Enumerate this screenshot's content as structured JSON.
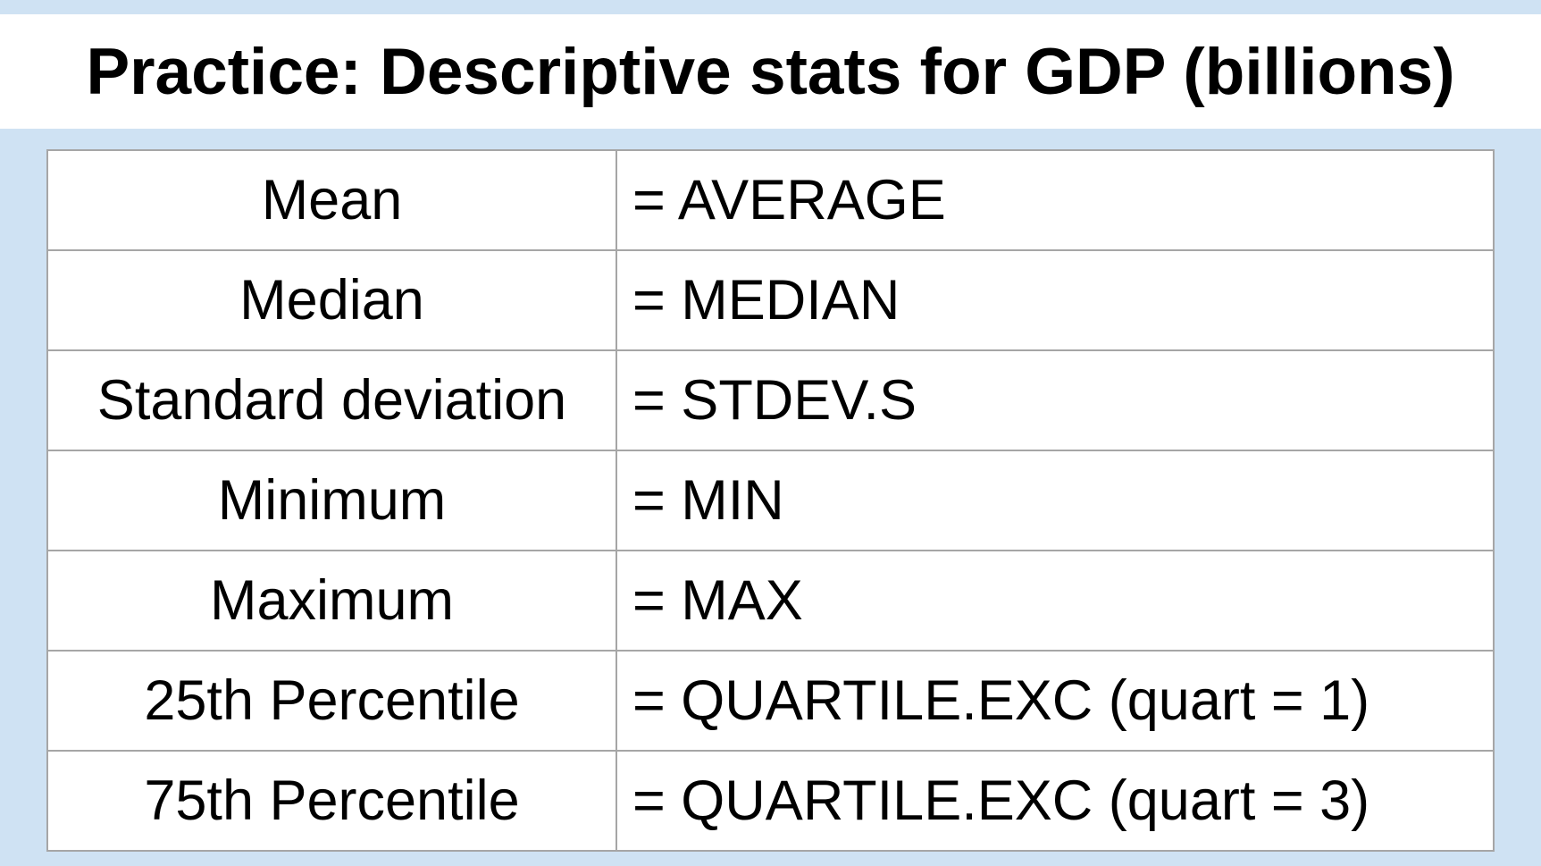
{
  "slide": {
    "title": "Practice: Descriptive stats for GDP (billions)"
  },
  "table": {
    "rows": [
      {
        "statistic": "Mean",
        "formula": "= AVERAGE"
      },
      {
        "statistic": "Median",
        "formula": "= MEDIAN"
      },
      {
        "statistic": "Standard deviation",
        "formula": "= STDEV.S"
      },
      {
        "statistic": "Minimum",
        "formula": "= MIN"
      },
      {
        "statistic": "Maximum",
        "formula": "= MAX"
      },
      {
        "statistic": "25th Percentile",
        "formula": "= QUARTILE.EXC (quart = 1)"
      },
      {
        "statistic": "75th Percentile",
        "formula": "= QUARTILE.EXC (quart = 3)"
      }
    ]
  },
  "colors": {
    "background": "#cfe2f3",
    "title_band": "#ffffff",
    "table_border": "#a6a6a6",
    "text": "#000000"
  }
}
